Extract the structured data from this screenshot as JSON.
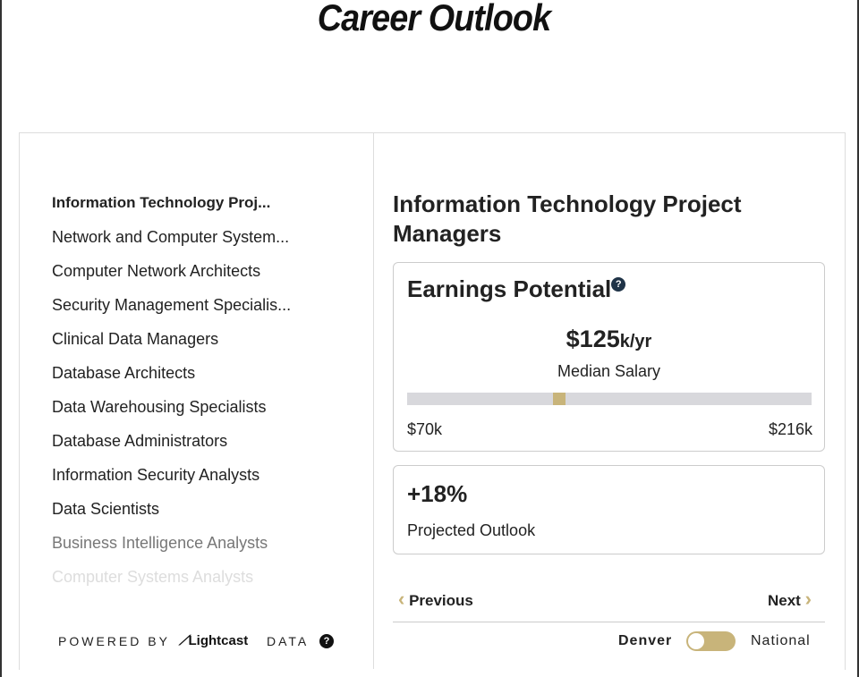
{
  "header": {
    "title": "Career Outlook"
  },
  "career_list": {
    "items": [
      "Information Technology Proj...",
      "Network and Computer System...",
      "Computer Network Architects",
      "Security Management Specialis...",
      "Clinical Data Managers",
      "Database Architects",
      "Data Warehousing Specialists",
      "Database Administrators",
      "Information Security Analysts",
      "Data Scientists",
      "Business Intelligence Analysts",
      "Computer Systems Analysts"
    ]
  },
  "footer": {
    "powered_by": "POWERED BY",
    "brand": "Lightcast",
    "data": "DATA",
    "help": "?"
  },
  "detail": {
    "title": "Information Technology Project Managers",
    "earnings": {
      "title": "Earnings Potential",
      "help": "?",
      "salary": "$125",
      "unit": "k/yr",
      "label": "Median Salary",
      "min": "$70k",
      "max": "$216k"
    },
    "outlook": {
      "value": "+18%",
      "label": "Projected Outlook"
    },
    "nav": {
      "previous": "Previous",
      "next": "Next"
    },
    "toggle": {
      "left": "Denver",
      "right": "National"
    }
  }
}
